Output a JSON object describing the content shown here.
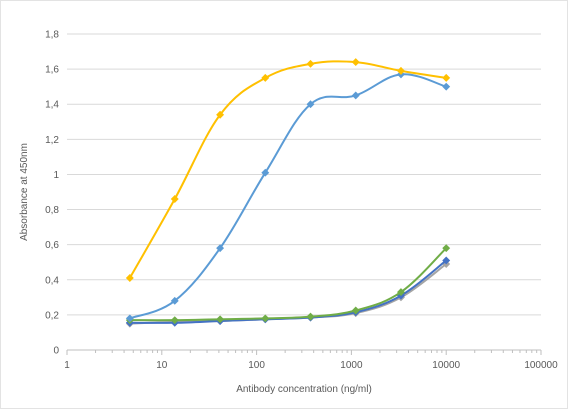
{
  "chart_data": {
    "type": "line",
    "title": "",
    "xlabel": "Antibody concentration (ng/ml)",
    "ylabel": "Absorbance at 450nm",
    "x_scale": "log",
    "xlim": [
      1,
      100000
    ],
    "ylim": [
      0,
      1.8
    ],
    "x_ticks": [
      1,
      10,
      100,
      1000,
      10000,
      100000
    ],
    "x_tick_labels": [
      "1",
      "10",
      "100",
      "1000",
      "10000",
      "100000"
    ],
    "y_ticks": [
      0,
      0.2,
      0.4,
      0.6,
      0.8,
      1,
      1.2,
      1.4,
      1.6,
      1.8
    ],
    "y_tick_labels": [
      "0",
      "0,2",
      "0,4",
      "0,6",
      "0,8",
      "1",
      "1,2",
      "1,4",
      "1,6",
      "1,8"
    ],
    "grid": "horizontal",
    "legend": "none",
    "x": [
      4.6,
      13.7,
      41.2,
      123.5,
      370.4,
      1111,
      3333,
      10000
    ],
    "series": [
      {
        "color": "#ffc000",
        "values": [
          0.41,
          0.86,
          1.34,
          1.55,
          1.63,
          1.64,
          1.59,
          1.55
        ]
      },
      {
        "color": "#5b9bd5",
        "values": [
          0.18,
          0.28,
          0.58,
          1.01,
          1.4,
          1.45,
          1.57,
          1.5
        ]
      },
      {
        "color": "#70ad47",
        "values": [
          0.17,
          0.17,
          0.175,
          0.18,
          0.19,
          0.225,
          0.33,
          0.58
        ]
      },
      {
        "color": "#a5a5a5",
        "values": [
          0.15,
          0.16,
          0.165,
          0.175,
          0.185,
          0.21,
          0.3,
          0.49
        ]
      },
      {
        "color": "#4472c4",
        "values": [
          0.155,
          0.155,
          0.165,
          0.175,
          0.185,
          0.215,
          0.31,
          0.51
        ]
      }
    ]
  }
}
